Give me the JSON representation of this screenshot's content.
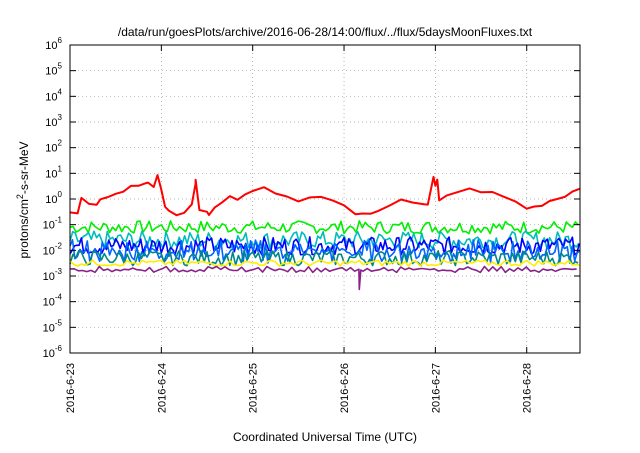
{
  "chart_data": {
    "type": "line",
    "title": "/data/run/goesPlots/archive/2016-06-28/14:00/flux/../flux/5daysMoonFluxes.txt",
    "xlabel": "Coordinated Universal Time (UTC)",
    "ylabel": {
      "base": "protons/cm",
      "sup": "2",
      "rest": "-s-sr-MeV"
    },
    "y_scale": "log",
    "ylim": [
      1e-06,
      1000000.0
    ],
    "y_ticks": [
      {
        "value": 1e-06,
        "base": "10",
        "exp": "-6"
      },
      {
        "value": 1e-05,
        "base": "10",
        "exp": "-5"
      },
      {
        "value": 0.0001,
        "base": "10",
        "exp": "-4"
      },
      {
        "value": 0.001,
        "base": "10",
        "exp": "-3"
      },
      {
        "value": 0.01,
        "base": "10",
        "exp": "-2"
      },
      {
        "value": 0.1,
        "base": "10",
        "exp": "-1"
      },
      {
        "value": 1,
        "base": "10",
        "exp": "0"
      },
      {
        "value": 10,
        "base": "10",
        "exp": "1"
      },
      {
        "value": 100,
        "base": "10",
        "exp": "2"
      },
      {
        "value": 1000.0,
        "base": "10",
        "exp": "3"
      },
      {
        "value": 10000.0,
        "base": "10",
        "exp": "4"
      },
      {
        "value": 100000.0,
        "base": "10",
        "exp": "5"
      },
      {
        "value": 1000000.0,
        "base": "10",
        "exp": "6"
      }
    ],
    "xlim": [
      "2016-06-23T00:00",
      "2016-06-28T14:00"
    ],
    "x_ticks": [
      {
        "value": "2016-06-23T00:00",
        "label": "2016-6-23"
      },
      {
        "value": "2016-06-24T00:00",
        "label": "2016-6-24"
      },
      {
        "value": "2016-06-25T00:00",
        "label": "2016-6-25"
      },
      {
        "value": "2016-06-26T00:00",
        "label": "2016-6-26"
      },
      {
        "value": "2016-06-27T00:00",
        "label": "2016-6-27"
      },
      {
        "value": "2016-06-28T00:00",
        "label": "2016-6-28"
      }
    ],
    "grid": true,
    "legend": "none",
    "series": [
      {
        "color": "#ff0000",
        "values": [
          [
            "2016-06-23T00:00",
            0.35
          ],
          [
            "2016-06-23T02:00",
            0.3
          ],
          [
            "2016-06-23T03:00",
            1.3
          ],
          [
            "2016-06-23T05:00",
            0.8
          ],
          [
            "2016-06-23T07:00",
            0.6
          ],
          [
            "2016-06-23T08:00",
            0.9
          ],
          [
            "2016-06-23T10:00",
            1.2
          ],
          [
            "2016-06-23T12:00",
            1.5
          ],
          [
            "2016-06-23T14:00",
            2.2
          ],
          [
            "2016-06-23T16:00",
            2.8
          ],
          [
            "2016-06-23T18:00",
            4.0
          ],
          [
            "2016-06-23T20:00",
            4.5
          ],
          [
            "2016-06-23T22:00",
            3.0
          ],
          [
            "2016-06-24T00:00",
            2.0
          ],
          [
            "2016-06-24T01:00",
            0.4
          ],
          [
            "2016-06-24T02:00",
            0.3
          ],
          [
            "2016-06-24T04:00",
            0.25
          ],
          [
            "2016-06-24T06:00",
            0.35
          ],
          [
            "2016-06-24T08:00",
            0.5
          ],
          [
            "2016-06-24T09:00",
            4.0
          ],
          [
            "2016-06-24T10:00",
            0.4
          ],
          [
            "2016-06-24T12:00",
            0.3
          ],
          [
            "2016-06-24T14:00",
            0.5
          ],
          [
            "2016-06-24T16:00",
            0.9
          ],
          [
            "2016-06-24T18:00",
            1.2
          ],
          [
            "2016-06-24T20:00",
            1.0
          ],
          [
            "2016-06-24T22:00",
            1.5
          ],
          [
            "2016-06-25T00:00",
            2.0
          ],
          [
            "2016-06-25T03:00",
            2.5
          ],
          [
            "2016-06-25T06:00",
            2.0
          ],
          [
            "2016-06-25T09:00",
            1.5
          ],
          [
            "2016-06-25T12:00",
            1.0
          ],
          [
            "2016-06-25T15:00",
            1.2
          ],
          [
            "2016-06-25T18:00",
            1.0
          ],
          [
            "2016-06-25T21:00",
            0.8
          ],
          [
            "2016-06-26T00:00",
            0.5
          ],
          [
            "2016-06-26T03:00",
            0.3
          ],
          [
            "2016-06-26T05:00",
            0.22
          ],
          [
            "2016-06-26T07:00",
            0.25
          ],
          [
            "2016-06-26T09:00",
            0.35
          ],
          [
            "2016-06-26T12:00",
            0.6
          ],
          [
            "2016-06-26T15:00",
            1.0
          ],
          [
            "2016-06-26T18:00",
            0.9
          ],
          [
            "2016-06-26T21:00",
            0.7
          ],
          [
            "2016-06-26T22:00",
            0.6
          ],
          [
            "2016-06-27T00:00",
            4.0
          ],
          [
            "2016-06-27T01:00",
            1.0
          ],
          [
            "2016-06-27T03:00",
            1.5
          ],
          [
            "2016-06-27T06:00",
            2.0
          ],
          [
            "2016-06-27T09:00",
            2.5
          ],
          [
            "2016-06-27T12:00",
            2.0
          ],
          [
            "2016-06-27T15:00",
            1.5
          ],
          [
            "2016-06-27T18:00",
            1.0
          ],
          [
            "2016-06-27T21:00",
            0.8
          ],
          [
            "2016-06-28T00:00",
            0.4
          ],
          [
            "2016-06-28T02:00",
            0.45
          ],
          [
            "2016-06-28T04:00",
            0.6
          ],
          [
            "2016-06-28T06:00",
            0.8
          ],
          [
            "2016-06-28T08:00",
            1.0
          ],
          [
            "2016-06-28T10:00",
            1.5
          ],
          [
            "2016-06-28T12:00",
            2.0
          ],
          [
            "2016-06-28T14:00",
            2.5
          ]
        ],
        "spikes": [
          [
            "2016-06-23T20:30",
            4.5
          ],
          [
            "2016-06-23T23:00",
            9.0
          ],
          [
            "2016-06-24T09:00",
            6.0
          ],
          [
            "2016-06-24T12:30",
            0.3
          ],
          [
            "2016-06-26T23:30",
            7.0
          ],
          [
            "2016-06-27T00:30",
            6.0
          ]
        ]
      },
      {
        "color": "#00ee00",
        "base": 0.08,
        "amp": 0.25,
        "period_h": 1.6
      },
      {
        "color": "#00bbbb",
        "base": 0.025,
        "amp": 0.35,
        "period_h": 1.4
      },
      {
        "color": "#0000ff",
        "base": 0.015,
        "amp": 0.35,
        "period_h": 1.2
      },
      {
        "color": "#0066ff",
        "base": 0.009,
        "amp": 0.35,
        "period_h": 1.3
      },
      {
        "color": "#008888",
        "base": 0.005,
        "amp": 0.3,
        "period_h": 1.5
      },
      {
        "color": "#ffee00",
        "base": 0.0032,
        "amp": 0.12,
        "period_h": 2.0
      },
      {
        "color": "#882288",
        "base": 0.0018,
        "amp": 0.08,
        "period_h": 2.2
      }
    ]
  }
}
